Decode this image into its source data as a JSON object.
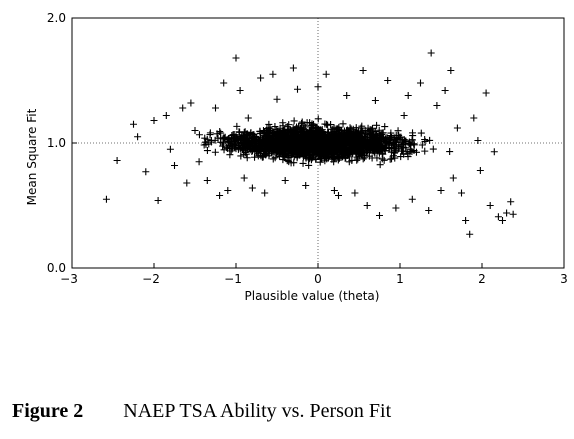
{
  "chart_data": {
    "type": "scatter",
    "xlabel": "Plausible value (theta)",
    "ylabel": "Mean Square Fit",
    "xlim": [
      -3,
      3
    ],
    "ylim": [
      0.0,
      2.0
    ],
    "x_ticks": [
      "-3",
      "-2",
      "-1",
      "0",
      "1",
      "2",
      "3"
    ],
    "y_ticks": [
      "0.0",
      "1.0",
      "2.0"
    ],
    "reference_lines": {
      "x": 0,
      "y": 1.0,
      "style": "dotted"
    },
    "marker": "+",
    "points": [
      [
        -2.58,
        0.55
      ],
      [
        -2.45,
        0.86
      ],
      [
        -2.25,
        1.15
      ],
      [
        -2.2,
        1.05
      ],
      [
        -2.1,
        0.77
      ],
      [
        -1.95,
        0.54
      ],
      [
        -1.85,
        1.22
      ],
      [
        -1.8,
        0.95
      ],
      [
        -1.75,
        0.82
      ],
      [
        -1.6,
        0.68
      ],
      [
        -1.55,
        1.32
      ],
      [
        -1.5,
        1.1
      ],
      [
        -1.45,
        0.85
      ],
      [
        -1.35,
        0.7
      ],
      [
        -1.3,
        1.02
      ],
      [
        -1.25,
        1.28
      ],
      [
        -1.15,
        1.48
      ],
      [
        -1.1,
        0.62
      ],
      [
        -1.0,
        1.68
      ],
      [
        -0.95,
        1.42
      ],
      [
        -0.9,
        0.72
      ],
      [
        -0.85,
        1.2
      ],
      [
        -0.7,
        1.52
      ],
      [
        -0.65,
        0.6
      ],
      [
        -0.5,
        1.35
      ],
      [
        -0.4,
        0.7
      ],
      [
        -0.25,
        1.43
      ],
      [
        -0.15,
        0.66
      ],
      [
        0.1,
        1.55
      ],
      [
        0.2,
        0.62
      ],
      [
        0.35,
        1.38
      ],
      [
        0.45,
        0.6
      ],
      [
        0.55,
        1.58
      ],
      [
        0.6,
        0.5
      ],
      [
        0.7,
        1.34
      ],
      [
        0.85,
        1.5
      ],
      [
        0.95,
        0.48
      ],
      [
        1.05,
        1.22
      ],
      [
        1.15,
        0.55
      ],
      [
        1.25,
        1.48
      ],
      [
        1.35,
        0.46
      ],
      [
        1.38,
        1.72
      ],
      [
        1.45,
        1.3
      ],
      [
        1.5,
        0.62
      ],
      [
        1.55,
        1.42
      ],
      [
        1.62,
        1.58
      ],
      [
        1.7,
        1.12
      ],
      [
        1.75,
        0.6
      ],
      [
        1.8,
        0.38
      ],
      [
        1.85,
        0.27
      ],
      [
        1.9,
        1.2
      ],
      [
        1.98,
        0.78
      ],
      [
        2.05,
        1.4
      ],
      [
        2.1,
        0.5
      ],
      [
        2.15,
        0.93
      ],
      [
        2.2,
        0.41
      ],
      [
        2.25,
        0.38
      ],
      [
        2.3,
        0.44
      ],
      [
        2.35,
        0.53
      ],
      [
        2.38,
        0.43
      ],
      [
        -0.3,
        1.6
      ],
      [
        0.75,
        0.42
      ],
      [
        -0.55,
        1.55
      ],
      [
        1.1,
        1.38
      ],
      [
        -1.2,
        0.58
      ],
      [
        0.0,
        1.45
      ],
      [
        0.25,
        0.58
      ],
      [
        -2.0,
        1.18
      ],
      [
        -1.65,
        1.28
      ],
      [
        1.65,
        0.72
      ],
      [
        1.95,
        1.02
      ],
      [
        -0.8,
        0.64
      ]
    ]
  },
  "caption": {
    "figure": "Figure 2",
    "text": "NAEP TSA Ability vs. Person Fit"
  }
}
